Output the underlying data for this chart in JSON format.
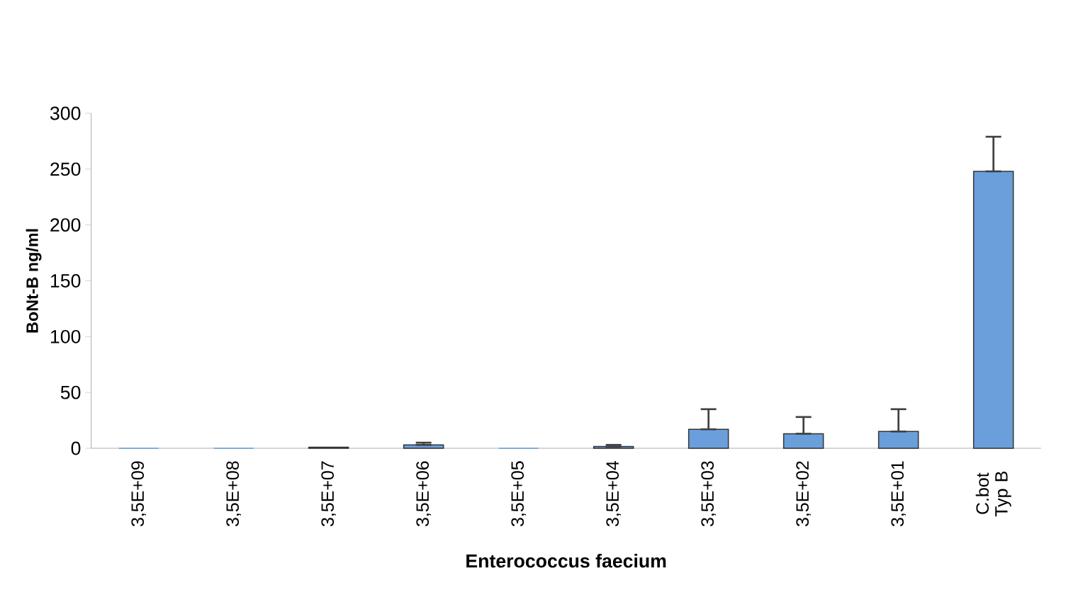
{
  "chart_data": {
    "type": "bar",
    "xlabel": "Enterococcus faecium",
    "ylabel": "BoNt-B ng/ml",
    "categories": [
      "3,5E+09",
      "3,5E+08",
      "3,5E+07",
      "3,5E+06",
      "3,5E+05",
      "3,5E+04",
      "3,5E+03",
      "3,5E+02",
      "3,5E+01",
      "C.bot Typ B"
    ],
    "values": [
      0,
      0,
      1,
      3,
      0,
      1.5,
      17,
      13,
      15,
      248
    ],
    "errors": [
      null,
      null,
      null,
      [
        3,
        5
      ],
      null,
      [
        1.5,
        3
      ],
      [
        17,
        35
      ],
      [
        13,
        28
      ],
      [
        15,
        35
      ],
      [
        248,
        279
      ]
    ],
    "color": "#6a9fdb",
    "ylim": [
      0,
      300
    ],
    "yticks": [
      0,
      50,
      100,
      150,
      200,
      250,
      300
    ]
  }
}
